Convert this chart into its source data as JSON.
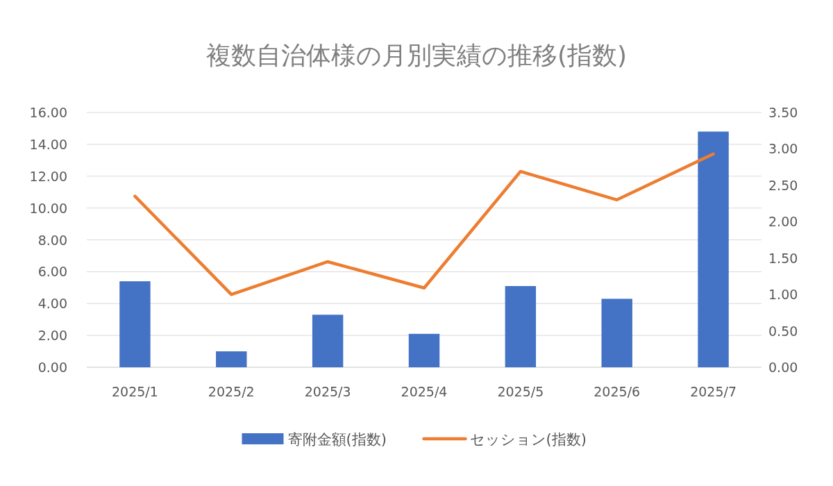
{
  "chart_data": {
    "type": "bar",
    "title": "複数自治体様の月別実績の推移(指数)",
    "categories": [
      "2025/1",
      "2025/2",
      "2025/3",
      "2025/4",
      "2025/5",
      "2025/6",
      "2025/7"
    ],
    "series": [
      {
        "name": "寄附金額(指数)",
        "color": "#4472c4",
        "values": [
          5.4,
          1.0,
          3.3,
          2.1,
          5.1,
          4.3,
          14.8
        ]
      },
      {
        "name": "セッション(指数)",
        "color": "#ed7d31",
        "type": "line",
        "axis": "y2",
        "values": [
          2.35,
          1.0,
          1.45,
          1.09,
          2.69,
          2.3,
          2.93
        ]
      }
    ],
    "ylim": [
      0,
      16
    ],
    "yticks": [
      {
        "value": 0,
        "label": "0.00"
      },
      {
        "value": 2,
        "label": "2.00"
      },
      {
        "value": 4,
        "label": "4.00"
      },
      {
        "value": 6,
        "label": "6.00"
      },
      {
        "value": 8,
        "label": "8.00"
      },
      {
        "value": 10,
        "label": "10.00"
      },
      {
        "value": 12,
        "label": "12.00"
      },
      {
        "value": 14,
        "label": "14.00"
      },
      {
        "value": 16,
        "label": "16.00"
      }
    ],
    "y2lim": [
      0,
      3.5
    ],
    "y2ticks": [
      {
        "value": 0,
        "label": "0.00"
      },
      {
        "value": 0.5,
        "label": "0.50"
      },
      {
        "value": 1,
        "label": "1.00"
      },
      {
        "value": 1.5,
        "label": "1.50"
      },
      {
        "value": 2,
        "label": "2.00"
      },
      {
        "value": 2.5,
        "label": "2.50"
      },
      {
        "value": 3,
        "label": "3.00"
      },
      {
        "value": 3.5,
        "label": "3.50"
      }
    ],
    "grid": "y",
    "legend": "bottom",
    "marker": "none",
    "line_style": "solid"
  }
}
